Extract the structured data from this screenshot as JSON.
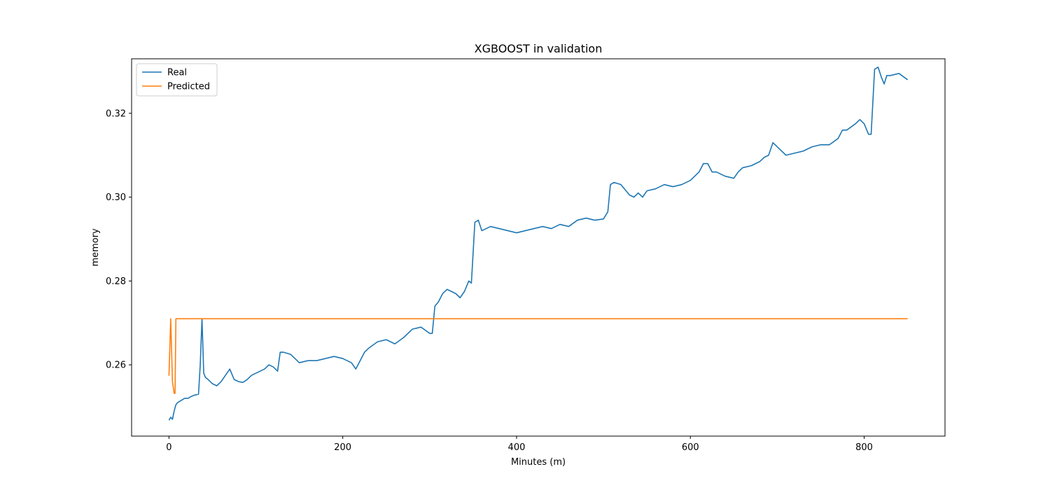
{
  "chart_data": {
    "type": "line",
    "title": "XGBOOST in validation",
    "xlabel": "Minutes (m)",
    "ylabel": "memory",
    "xlim": [
      -43,
      893
    ],
    "ylim": [
      0.243,
      0.333
    ],
    "xticks": [
      0,
      200,
      400,
      600,
      800
    ],
    "yticks": [
      0.26,
      0.28,
      0.3,
      0.32
    ],
    "ytick_labels": [
      "0.26",
      "0.28",
      "0.30",
      "0.32"
    ],
    "grid": false,
    "legend": "top-left",
    "series": [
      {
        "name": "Real",
        "color": "#1f77b4",
        "x": [
          0,
          2,
          4,
          6,
          8,
          10,
          14,
          18,
          22,
          26,
          30,
          34,
          36,
          38,
          40,
          42,
          45,
          50,
          55,
          60,
          65,
          70,
          75,
          80,
          85,
          90,
          95,
          100,
          105,
          110,
          115,
          120,
          125,
          128,
          132,
          140,
          150,
          160,
          170,
          180,
          190,
          200,
          210,
          215,
          220,
          225,
          230,
          240,
          250,
          260,
          270,
          280,
          290,
          300,
          303,
          306,
          310,
          315,
          320,
          330,
          335,
          340,
          343,
          345,
          348,
          352,
          356,
          360,
          370,
          380,
          390,
          400,
          410,
          420,
          430,
          440,
          450,
          460,
          470,
          480,
          490,
          500,
          505,
          508,
          512,
          520,
          530,
          535,
          540,
          545,
          550,
          560,
          570,
          580,
          590,
          600,
          610,
          615,
          620,
          625,
          630,
          640,
          650,
          655,
          660,
          670,
          675,
          680,
          685,
          690,
          695,
          700,
          710,
          720,
          730,
          740,
          750,
          760,
          770,
          775,
          780,
          790,
          795,
          800,
          805,
          808,
          812,
          816,
          820,
          823,
          826,
          830,
          840,
          850
        ],
        "y": [
          0.2468,
          0.2475,
          0.247,
          0.249,
          0.2505,
          0.251,
          0.2515,
          0.252,
          0.252,
          0.2525,
          0.2528,
          0.253,
          0.26,
          0.271,
          0.258,
          0.257,
          0.2565,
          0.2555,
          0.255,
          0.256,
          0.2575,
          0.259,
          0.2565,
          0.256,
          0.2558,
          0.2565,
          0.2575,
          0.258,
          0.2585,
          0.259,
          0.26,
          0.2595,
          0.2585,
          0.263,
          0.263,
          0.2625,
          0.2605,
          0.261,
          0.261,
          0.2615,
          0.262,
          0.2615,
          0.2605,
          0.259,
          0.261,
          0.263,
          0.264,
          0.2655,
          0.266,
          0.265,
          0.2665,
          0.2685,
          0.269,
          0.2675,
          0.2675,
          0.274,
          0.275,
          0.277,
          0.278,
          0.277,
          0.276,
          0.2775,
          0.279,
          0.28,
          0.2795,
          0.294,
          0.2945,
          0.292,
          0.293,
          0.2925,
          0.292,
          0.2915,
          0.292,
          0.2925,
          0.293,
          0.2925,
          0.2935,
          0.293,
          0.2945,
          0.295,
          0.2945,
          0.2948,
          0.2965,
          0.303,
          0.3035,
          0.303,
          0.3005,
          0.3,
          0.301,
          0.3,
          0.3015,
          0.302,
          0.303,
          0.3025,
          0.303,
          0.304,
          0.306,
          0.308,
          0.308,
          0.306,
          0.306,
          0.305,
          0.3045,
          0.306,
          0.307,
          0.3075,
          0.308,
          0.3085,
          0.3095,
          0.31,
          0.313,
          0.312,
          0.31,
          0.3105,
          0.311,
          0.312,
          0.3125,
          0.3125,
          0.314,
          0.316,
          0.316,
          0.3175,
          0.3185,
          0.3175,
          0.315,
          0.315,
          0.3305,
          0.331,
          0.3285,
          0.327,
          0.329,
          0.329,
          0.3295,
          0.328
        ]
      },
      {
        "name": "Predicted",
        "color": "#ff7f0e",
        "x": [
          0,
          2,
          4,
          6,
          7,
          8,
          10,
          850
        ],
        "y": [
          0.2574,
          0.271,
          0.256,
          0.2532,
          0.2532,
          0.271,
          0.271,
          0.271
        ]
      }
    ]
  }
}
